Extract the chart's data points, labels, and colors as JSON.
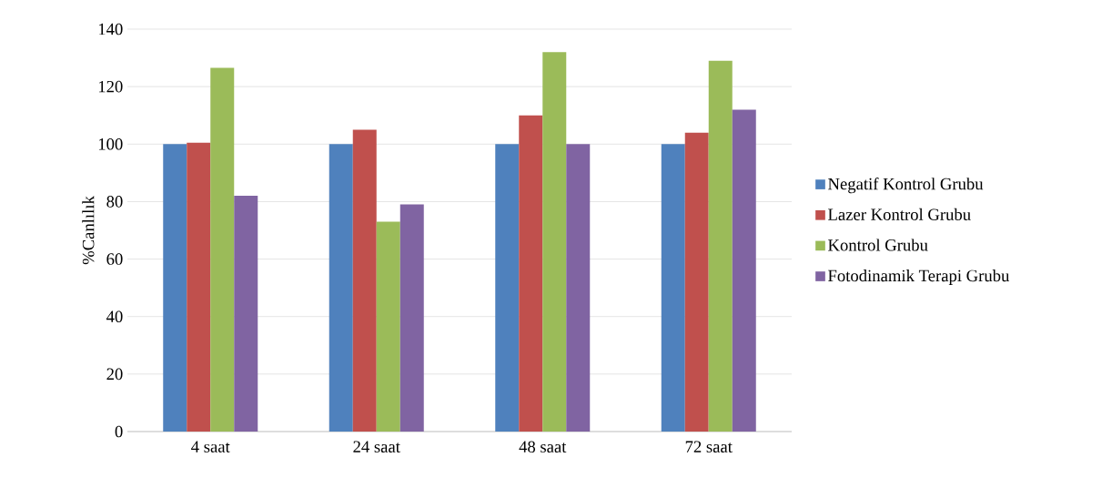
{
  "chart_data": {
    "type": "bar",
    "ylabel": "%Canlılık",
    "categories": [
      "4 saat",
      "24 saat",
      "48 saat",
      "72 saat"
    ],
    "series": [
      {
        "name": "Negatif Kontrol Grubu",
        "color": "#4f81bd",
        "values": [
          100,
          100,
          100,
          100
        ]
      },
      {
        "name": "Lazer Kontrol Grubu",
        "color": "#c0504d",
        "values": [
          100.5,
          105,
          110,
          104
        ]
      },
      {
        "name": "Kontrol Grubu",
        "color": "#9bbb59",
        "values": [
          126.5,
          73,
          132,
          129
        ]
      },
      {
        "name": "Fotodinamik Terapi Grubu",
        "color": "#8064a2",
        "values": [
          82,
          79,
          100,
          112
        ]
      }
    ],
    "ylim": [
      0,
      140
    ],
    "yticks": [
      0,
      20,
      40,
      60,
      80,
      100,
      120,
      140
    ],
    "grid": "y",
    "legend": "right"
  }
}
